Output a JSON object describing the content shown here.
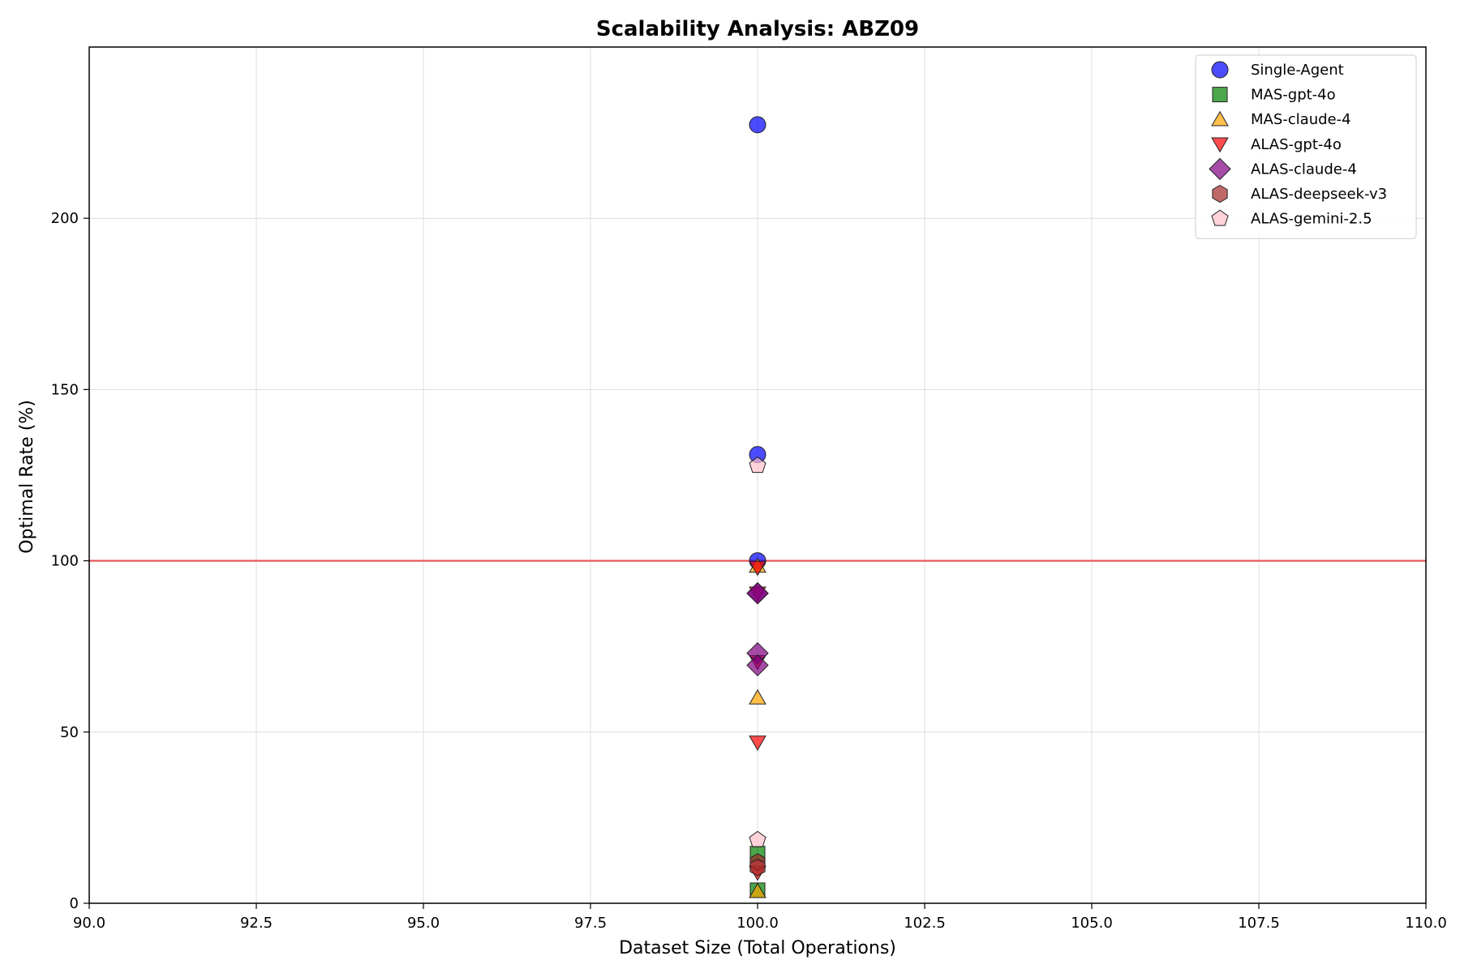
{
  "chart_data": {
    "type": "scatter",
    "title": "Scalability Analysis: ABZ09",
    "xlabel": "Dataset Size (Total Operations)",
    "ylabel": "Optimal Rate (%)",
    "xlim": [
      90,
      110
    ],
    "ylim": [
      0,
      250
    ],
    "x_ticks": [
      "90.0",
      "92.5",
      "95.0",
      "97.5",
      "100.0",
      "102.5",
      "105.0",
      "107.5",
      "110.0"
    ],
    "y_ticks": [
      "0",
      "50",
      "100",
      "150",
      "200"
    ],
    "grid": true,
    "legend_position": "top-right",
    "reference_line": {
      "y": 100,
      "color": "#e8595a"
    },
    "series": [
      {
        "name": "Single-Agent",
        "marker": "circle",
        "color": "#0000ff",
        "points": [
          {
            "x": 100,
            "y": 227.3
          },
          {
            "x": 100,
            "y": 131.0
          },
          {
            "x": 100,
            "y": 100.0
          }
        ]
      },
      {
        "name": "MAS-gpt-4o",
        "marker": "square",
        "color": "#008000",
        "points": [
          {
            "x": 100,
            "y": 14.5
          },
          {
            "x": 100,
            "y": 3.8
          }
        ]
      },
      {
        "name": "MAS-claude-4",
        "marker": "triangle-up",
        "color": "#ffa500",
        "points": [
          {
            "x": 100,
            "y": 98.5
          },
          {
            "x": 100,
            "y": 60.0
          },
          {
            "x": 100,
            "y": 3.5
          }
        ]
      },
      {
        "name": "ALAS-gpt-4o",
        "marker": "triangle-down",
        "color": "#ff0000",
        "points": [
          {
            "x": 100,
            "y": 98.0
          },
          {
            "x": 100,
            "y": 90.5
          },
          {
            "x": 100,
            "y": 70.5
          },
          {
            "x": 100,
            "y": 47.0
          },
          {
            "x": 100,
            "y": 9.0
          }
        ]
      },
      {
        "name": "ALAS-claude-4",
        "marker": "diamond",
        "color": "#800080",
        "points": [
          {
            "x": 100,
            "y": 90.5
          },
          {
            "x": 100,
            "y": 90.5
          },
          {
            "x": 100,
            "y": 73.0
          },
          {
            "x": 100,
            "y": 69.5
          }
        ]
      },
      {
        "name": "ALAS-deepseek-v3",
        "marker": "hexagon",
        "color": "#a52a2a",
        "points": [
          {
            "x": 100,
            "y": 12.0
          },
          {
            "x": 100,
            "y": 10.5
          }
        ]
      },
      {
        "name": "ALAS-gemini-2.5",
        "marker": "pentagon",
        "color": "#ffc0cb",
        "points": [
          {
            "x": 100,
            "y": 127.8
          },
          {
            "x": 100,
            "y": 18.5
          }
        ]
      }
    ]
  }
}
